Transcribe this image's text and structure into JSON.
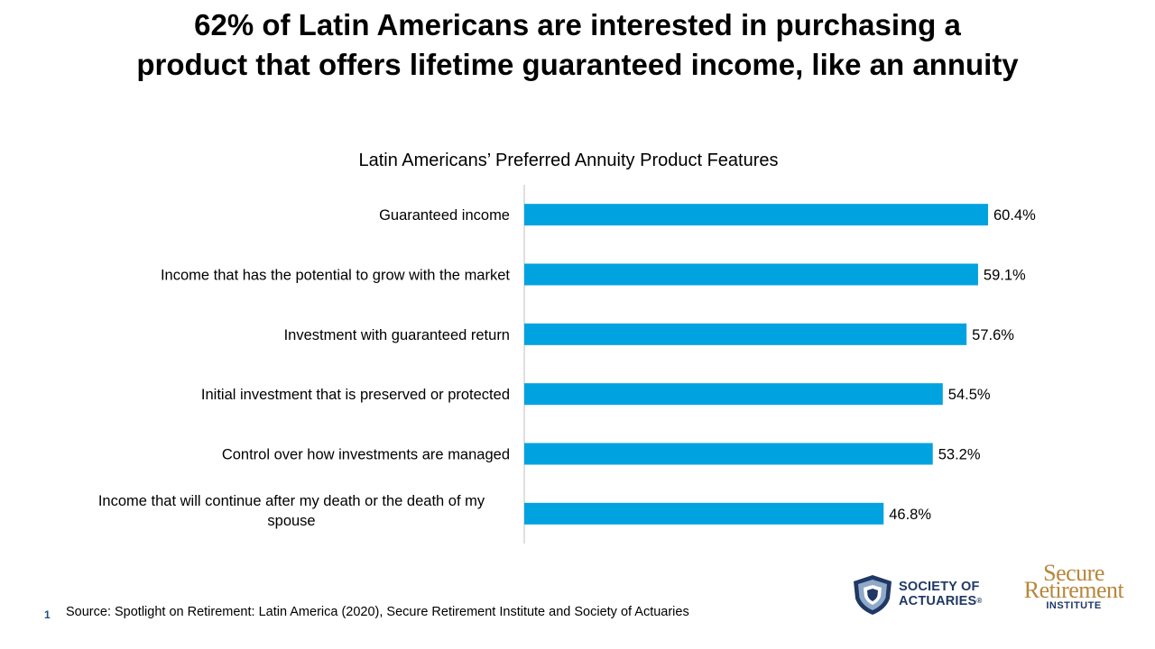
{
  "headline": {
    "line1": "62% of Latin Americans are interested in purchasing a",
    "line2": "product that offers lifetime guaranteed income, like an annuity"
  },
  "chart_data": {
    "type": "bar",
    "orientation": "horizontal",
    "title": "Latin Americans’ Preferred Annuity Product Features",
    "categories": [
      "Guaranteed income",
      "Income that has the potential to grow with the market",
      "Investment with guaranteed return",
      "Initial investment that is preserved or protected",
      "Control over how investments are managed",
      "Income that will continue after my death or the death of my spouse"
    ],
    "category_lines": [
      [
        "Guaranteed income"
      ],
      [
        "Income that has the potential to grow with the market"
      ],
      [
        "Investment with guaranteed return"
      ],
      [
        "Initial investment that is preserved or protected"
      ],
      [
        "Control over how investments are managed"
      ],
      [
        "Income that will continue after my death or the death of my",
        "spouse"
      ]
    ],
    "values": [
      60.4,
      59.1,
      57.6,
      54.5,
      53.2,
      46.8
    ],
    "value_labels": [
      "60.4%",
      "59.1%",
      "57.6%",
      "54.5%",
      "53.2%",
      "46.8%"
    ],
    "xlim": [
      0,
      70
    ],
    "grid": false,
    "bar_color": "#00a3e0"
  },
  "footer": {
    "slide_number": "1",
    "source": "Source: Spotlight on Retirement: Latin America (2020), Secure Retirement Institute and Society of Actuaries"
  },
  "logos": {
    "soa": {
      "line1": "SOCIETY OF",
      "line2": "ACTUARIES",
      "mark": "®",
      "color": "#1f3864",
      "icon": "shield-icon"
    },
    "sri": {
      "word1": "Secure",
      "word2": "Retirement",
      "word3": "INSTITUTE",
      "color": "#b8863b"
    }
  }
}
